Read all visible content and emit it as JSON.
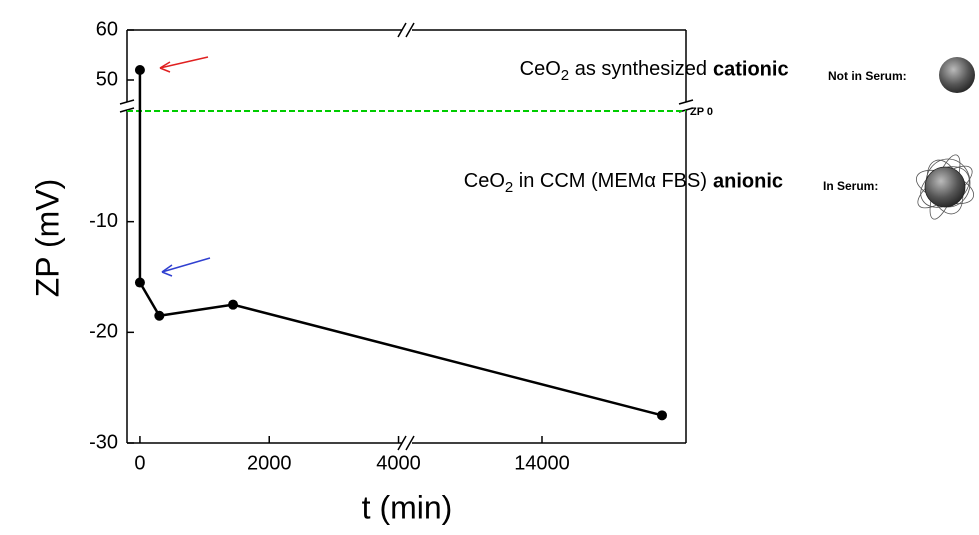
{
  "chart_data": {
    "type": "line",
    "xlabel": "t (min)",
    "ylabel": "ZP (mV)",
    "x": [
      0,
      0,
      300,
      1440,
      16000
    ],
    "values": [
      52,
      -15.5,
      -18.5,
      -17.5,
      -27.5
    ],
    "color": "#000000",
    "x_segments": [
      {
        "xlim": [
          -200,
          4100
        ],
        "xticks": [
          0,
          2000,
          4000
        ]
      },
      {
        "xlim": [
          11800,
          16400
        ],
        "xticks": [
          14000
        ]
      }
    ],
    "y_segments": [
      {
        "ylim": [
          45,
          60
        ],
        "yticks": [
          50,
          60
        ]
      },
      {
        "ylim": [
          -30,
          0
        ],
        "yticks": [
          -30,
          -20,
          -10
        ]
      }
    ],
    "reference_line": {
      "value": 0,
      "label": "ZP 0",
      "color": "#00cc00"
    },
    "annotations": [
      {
        "prefix": "CeO",
        "sub": "2",
        "text": " as synthesized",
        "tag": "cationic",
        "serum": "Not in Serum:"
      },
      {
        "prefix": "CeO",
        "sub": "2",
        "text": " in CCM (MEMα FBS)",
        "tag": "anionic",
        "serum": "In Serum:"
      }
    ]
  }
}
